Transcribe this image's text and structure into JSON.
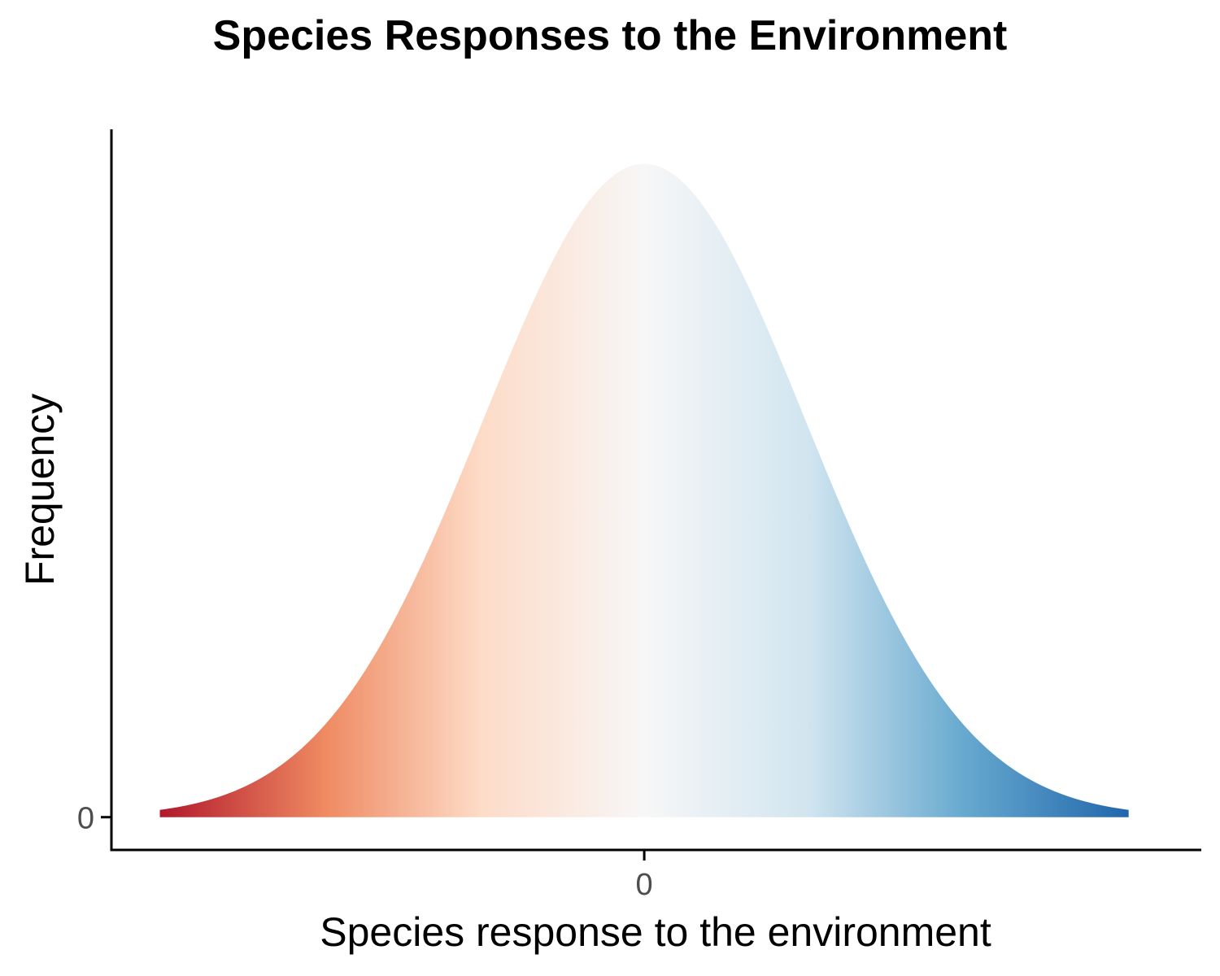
{
  "chart_data": {
    "type": "area",
    "title": "Species Responses to the Environment",
    "xlabel": "Species response to the environment",
    "ylabel": "Frequency",
    "x_ticks": [
      "0"
    ],
    "y_ticks": [
      "0"
    ],
    "x_tick_values": [
      0
    ],
    "y_tick_values": [
      0
    ],
    "xlim": [
      -3.3,
      3.45
    ],
    "ylim": [
      -0.02,
      0.42
    ],
    "curve": "normal density",
    "mean": 0,
    "sd": 1,
    "x_range": [
      -3,
      3
    ],
    "grid": false,
    "legend": "none",
    "gradient_colors": {
      "low": "#b2182b",
      "mid_low": "#ef8a62",
      "mid_low2": "#fddbc7",
      "mid": "#f7f7f7",
      "mid_high2": "#d1e5f0",
      "mid_high": "#67a9cf",
      "high": "#2166ac"
    },
    "axis_color": "#000000",
    "tick_label_color": "#4d4d4d"
  }
}
